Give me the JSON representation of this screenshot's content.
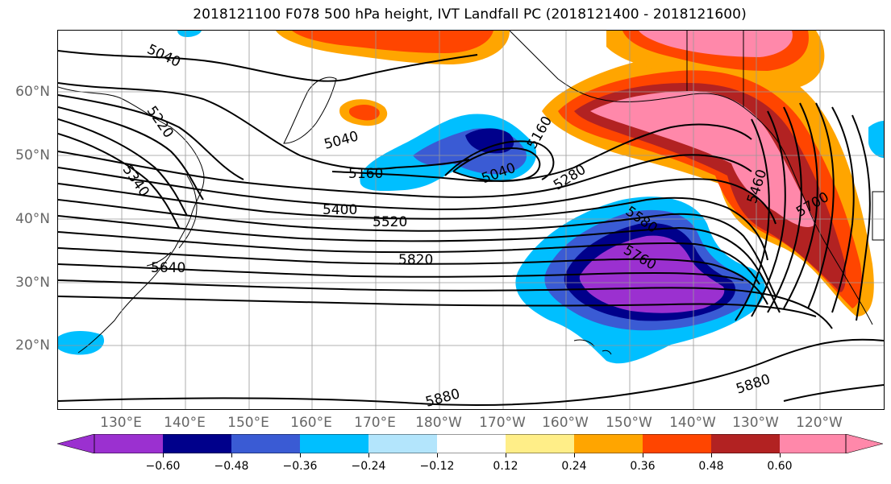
{
  "title": "2018121100 F078 500 hPa height, IVT Landfall PC (2018121400 - 2018121600)",
  "lat_labels": [
    "60°N",
    "50°N",
    "40°N",
    "30°N",
    "20°N"
  ],
  "lon_labels": [
    "130°E",
    "140°E",
    "150°E",
    "160°E",
    "170°E",
    "180°W",
    "170°W",
    "160°W",
    "150°W",
    "140°W",
    "130°W",
    "120°W"
  ],
  "contour_labels": [
    "5040",
    "5220",
    "5340",
    "5040",
    "5160",
    "5040",
    "5160",
    "5280",
    "5400",
    "5520",
    "5640",
    "5820",
    "5880",
    "5580",
    "5760",
    "5460",
    "5700",
    "5880"
  ],
  "colorbar": {
    "ticks": [
      "−0.60",
      "−0.48",
      "−0.36",
      "−0.24",
      "−0.12",
      "0.12",
      "0.24",
      "0.36",
      "0.48",
      "0.60"
    ],
    "colors": [
      "#9b30d0",
      "#00008b",
      "#3a5bd4",
      "#00bfff",
      "#b3e5fc",
      "#ffffff",
      "#ffee88",
      "#ffa500",
      "#ff4500",
      "#b22222",
      "#ff88aa"
    ]
  }
}
